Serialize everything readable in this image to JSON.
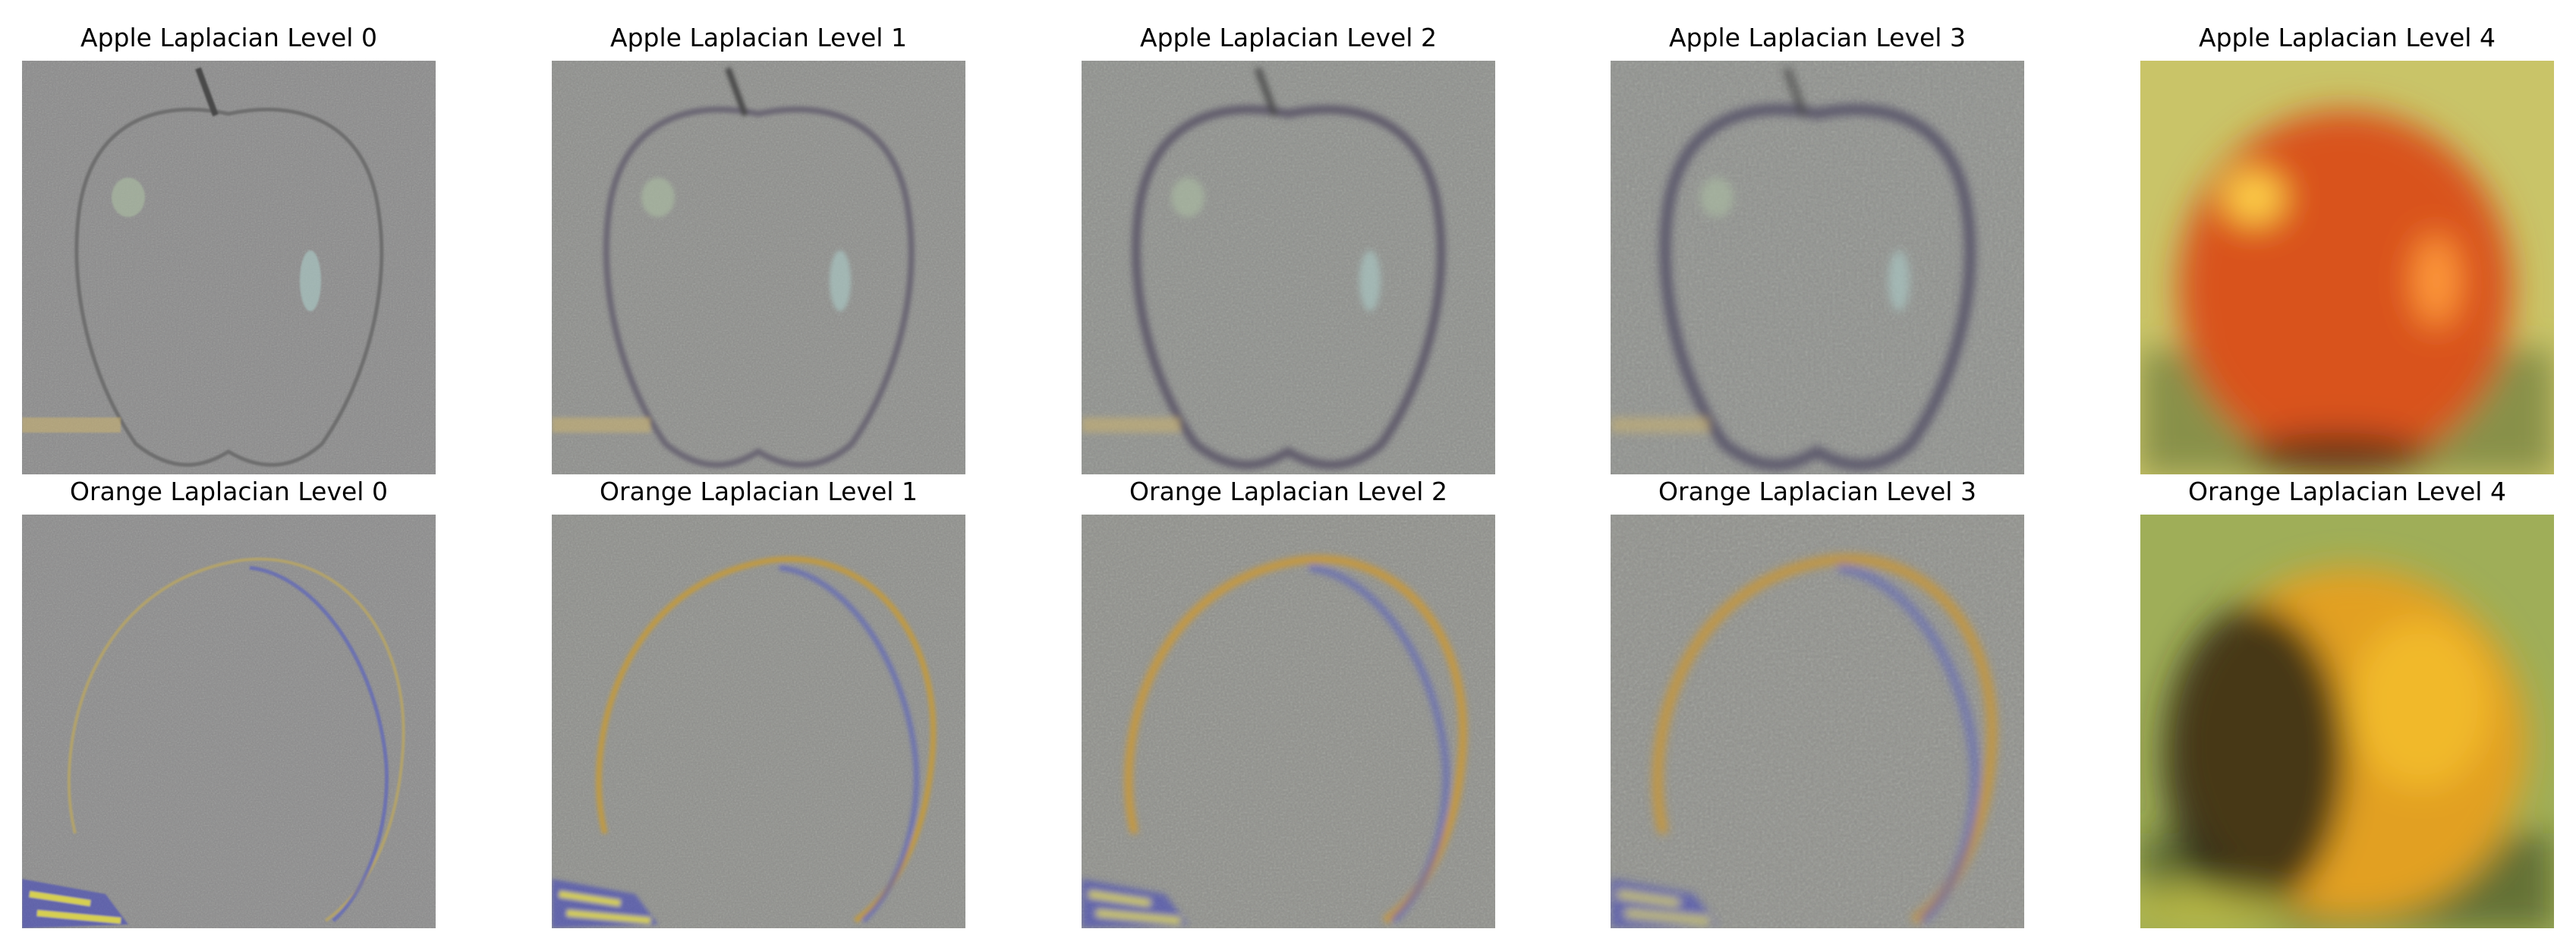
{
  "figure": {
    "panels": [
      {
        "title": "Apple Laplacian Level 0",
        "subject": "apple",
        "level": 0,
        "kind": "band",
        "tint": "#8b8b8b",
        "edge": "#6e6e6e"
      },
      {
        "title": "Apple Laplacian Level 1",
        "subject": "apple",
        "level": 1,
        "kind": "band",
        "tint": "#8e8f8c",
        "edge": "#6a6673"
      },
      {
        "title": "Apple Laplacian Level 2",
        "subject": "apple",
        "level": 2,
        "kind": "band",
        "tint": "#8f918d",
        "edge": "#5e5a6b"
      },
      {
        "title": "Apple Laplacian Level 3",
        "subject": "apple",
        "level": 3,
        "kind": "band",
        "tint": "#90928e",
        "edge": "#5a566a"
      },
      {
        "title": "Apple Laplacian Level 4",
        "subject": "apple",
        "level": 4,
        "kind": "base",
        "tint": "#c9c468",
        "edge": "#d9521b"
      },
      {
        "title": "Orange Laplacian Level 0",
        "subject": "orange",
        "level": 0,
        "kind": "band",
        "tint": "#8c8c8c",
        "edge": "#b3a36b"
      },
      {
        "title": "Orange Laplacian Level 1",
        "subject": "orange",
        "level": 1,
        "kind": "band",
        "tint": "#8f908c",
        "edge": "#c29a3c"
      },
      {
        "title": "Orange Laplacian Level 2",
        "subject": "orange",
        "level": 2,
        "kind": "band",
        "tint": "#90918c",
        "edge": "#c8983a"
      },
      {
        "title": "Orange Laplacian Level 3",
        "subject": "orange",
        "level": 3,
        "kind": "band",
        "tint": "#91928d",
        "edge": "#c4963c"
      },
      {
        "title": "Orange Laplacian Level 4",
        "subject": "orange",
        "level": 4,
        "kind": "base",
        "tint": "#9fae58",
        "edge": "#f1b92a"
      }
    ]
  }
}
